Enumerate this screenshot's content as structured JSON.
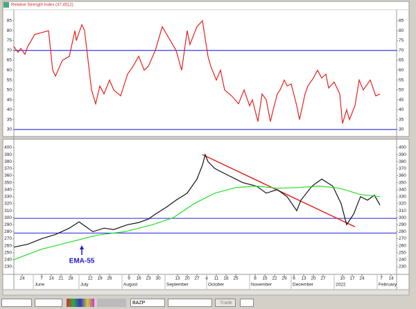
{
  "chart_data": [
    {
      "type": "line",
      "title": "Relative Strength Index (47.4512)",
      "xlim": [
        -6,
        270
      ],
      "ylim": [
        26.8,
        89.9
      ],
      "yticks": [
        30,
        35,
        40,
        45,
        50,
        55,
        60,
        65,
        70,
        75,
        80,
        85
      ],
      "hlines": [
        70,
        30
      ],
      "hline_color": "#3a3ae0",
      "series": [
        {
          "color": "#e8201c",
          "x": [
            -6,
            -3,
            -1,
            2,
            4,
            9,
            14,
            19,
            22,
            24,
            29,
            34,
            38,
            39,
            43,
            45,
            50,
            53,
            56,
            59,
            63,
            66,
            71,
            76,
            80,
            84,
            88,
            91,
            96,
            101,
            106,
            111,
            115,
            119,
            121,
            126,
            130,
            134,
            136,
            140,
            143,
            146,
            151,
            156,
            160,
            164,
            166,
            170,
            173,
            176,
            179,
            181,
            184,
            186,
            189,
            191,
            194,
            198,
            200,
            204,
            206,
            210,
            213,
            216,
            219,
            221,
            225,
            229,
            231,
            234,
            236,
            240,
            243,
            246,
            251,
            255,
            258
          ],
          "values": [
            72,
            69,
            71,
            68,
            72,
            78,
            79,
            80,
            60,
            57,
            65,
            67,
            80,
            75,
            83,
            80,
            50,
            43,
            52,
            48,
            55,
            50,
            47,
            58,
            62,
            67,
            60,
            62,
            70,
            82,
            76,
            70,
            60,
            80,
            73,
            82,
            85,
            67,
            62,
            55,
            60,
            50,
            47,
            43,
            50,
            42,
            45,
            34,
            48,
            45,
            34,
            40,
            48,
            50,
            55,
            52,
            53,
            42,
            35,
            48,
            52,
            56,
            60,
            56,
            58,
            51,
            54,
            48,
            33,
            40,
            35,
            42,
            55,
            50,
            55,
            47,
            48
          ]
        }
      ]
    },
    {
      "type": "line",
      "xlim": [
        -6,
        270
      ],
      "ylim": [
        219.1,
        409.9
      ],
      "yticks": [
        230,
        240,
        250,
        260,
        270,
        280,
        290,
        300,
        310,
        320,
        330,
        340,
        350,
        360,
        370,
        380,
        390,
        400
      ],
      "hlines": [
        299,
        278
      ],
      "hline_color": "#3a3ae0",
      "series": [
        {
          "color": "#111111",
          "x": [
            -6,
            4,
            14,
            24,
            34,
            41,
            51,
            59,
            66,
            76,
            84,
            91,
            96,
            104,
            111,
            119,
            126,
            130,
            132,
            134,
            139,
            149,
            159,
            169,
            176,
            184,
            191,
            198,
            201,
            209,
            216,
            224,
            230,
            234,
            239,
            244,
            249,
            254,
            258
          ],
          "values": [
            258,
            262,
            270,
            276,
            285,
            294,
            280,
            285,
            283,
            290,
            293,
            298,
            305,
            315,
            325,
            335,
            355,
            375,
            390,
            380,
            370,
            360,
            350,
            345,
            335,
            340,
            330,
            310,
            325,
            345,
            355,
            345,
            320,
            290,
            305,
            330,
            325,
            332,
            318
          ]
        },
        {
          "name": "EMA-55",
          "color": "#22dd22",
          "x": [
            -6,
            14,
            34,
            54,
            74,
            94,
            109,
            124,
            139,
            154,
            169,
            184,
            199,
            214,
            229,
            244,
            258
          ],
          "values": [
            240,
            255,
            265,
            275,
            280,
            290,
            300,
            320,
            335,
            343,
            345,
            342,
            343,
            345,
            342,
            333,
            330
          ]
        }
      ],
      "trendlines": [
        {
          "x": [
            130,
            240
          ],
          "values": [
            390,
            287
          ],
          "color": "#e8201c"
        }
      ],
      "xticks": [
        {
          "value": 0,
          "label": "24"
        },
        {
          "value": 14,
          "label": "7"
        },
        {
          "value": 21,
          "label": "14"
        },
        {
          "value": 28,
          "label": "21"
        },
        {
          "value": 35,
          "label": "28"
        },
        {
          "value": 49,
          "label": "12"
        },
        {
          "value": 56,
          "label": "19"
        },
        {
          "value": 63,
          "label": "26"
        },
        {
          "value": 77,
          "label": "9"
        },
        {
          "value": 84,
          "label": "16"
        },
        {
          "value": 91,
          "label": "23"
        },
        {
          "value": 98,
          "label": "30"
        },
        {
          "value": 112,
          "label": "13"
        },
        {
          "value": 119,
          "label": "20"
        },
        {
          "value": 126,
          "label": "27"
        },
        {
          "value": 133,
          "label": "4"
        },
        {
          "value": 140,
          "label": "11"
        },
        {
          "value": 147,
          "label": "18"
        },
        {
          "value": 154,
          "label": "25"
        },
        {
          "value": 168,
          "label": "8"
        },
        {
          "value": 175,
          "label": "15"
        },
        {
          "value": 182,
          "label": "22"
        },
        {
          "value": 189,
          "label": "29"
        },
        {
          "value": 196,
          "label": "6"
        },
        {
          "value": 203,
          "label": "13"
        },
        {
          "value": 210,
          "label": "20"
        },
        {
          "value": 217,
          "label": "27"
        },
        {
          "value": 231,
          "label": "10"
        },
        {
          "value": 238,
          "label": "17"
        },
        {
          "value": 245,
          "label": "24"
        },
        {
          "value": 259,
          "label": "7"
        },
        {
          "value": 266,
          "label": "14"
        }
      ],
      "xmonths": [
        {
          "value": 8,
          "label": "June"
        },
        {
          "value": 41,
          "label": "July"
        },
        {
          "value": 72,
          "label": "August"
        },
        {
          "value": 103,
          "label": "September"
        },
        {
          "value": 133,
          "label": "October"
        },
        {
          "value": 164,
          "label": "November"
        },
        {
          "value": 194,
          "label": "December"
        },
        {
          "value": 225,
          "label": "2022"
        },
        {
          "value": 256,
          "label": "February"
        }
      ]
    }
  ],
  "toolbar": {
    "symbol": "BAZP",
    "button": "Trade"
  }
}
